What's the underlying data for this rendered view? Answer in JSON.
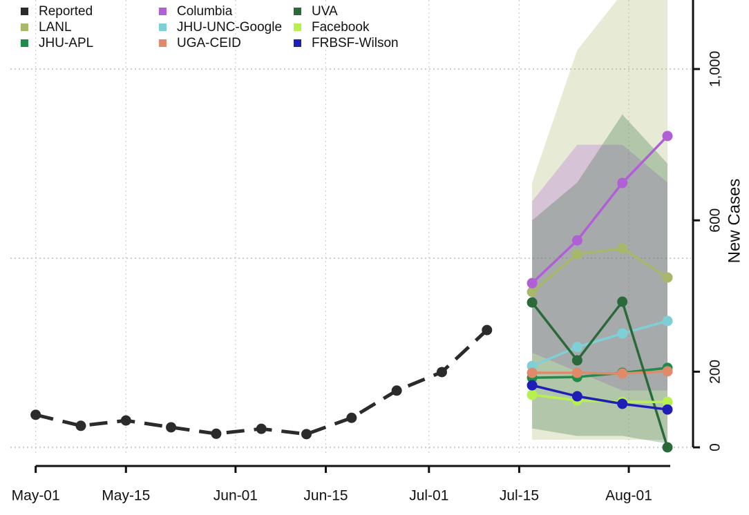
{
  "chart_data": {
    "type": "line",
    "y_label": "New Cases",
    "x": [
      "May-01",
      "May-08",
      "May-15",
      "May-22",
      "May-29",
      "Jun-05",
      "Jun-12",
      "Jun-19",
      "Jun-26",
      "Jul-03",
      "Jul-10",
      "Jul-17",
      "Jul-24",
      "Jul-31",
      "Aug-07"
    ],
    "series": [
      {
        "name": "Reported",
        "color": "#2b2b2b",
        "dashed": true,
        "values": [
          86,
          57,
          71,
          53,
          36,
          49,
          35,
          78,
          150,
          199,
          310,
          null,
          null,
          null,
          null
        ]
      },
      {
        "name": "LANL",
        "color": "#a8b86a",
        "values": [
          null,
          null,
          null,
          null,
          null,
          null,
          null,
          null,
          null,
          null,
          null,
          411,
          511,
          526,
          449
        ],
        "lower": [
          null,
          null,
          null,
          null,
          null,
          null,
          null,
          null,
          null,
          null,
          null,
          20,
          20,
          20,
          20
        ],
        "upper": [
          null,
          null,
          null,
          null,
          null,
          null,
          null,
          null,
          null,
          null,
          null,
          700,
          1050,
          1200,
          1300
        ]
      },
      {
        "name": "JHU-APL",
        "color": "#1f8c4a",
        "values": [
          null,
          null,
          null,
          null,
          null,
          null,
          null,
          null,
          null,
          null,
          null,
          184,
          186,
          197,
          210
        ]
      },
      {
        "name": "Columbia",
        "color": "#b05fd6",
        "values": [
          null,
          null,
          null,
          null,
          null,
          null,
          null,
          null,
          null,
          null,
          null,
          434,
          547,
          699,
          823
        ],
        "lower": [
          null,
          null,
          null,
          null,
          null,
          null,
          null,
          null,
          null,
          null,
          null,
          250,
          200,
          150,
          150
        ],
        "upper": [
          null,
          null,
          null,
          null,
          null,
          null,
          null,
          null,
          null,
          null,
          null,
          650,
          800,
          800,
          700
        ]
      },
      {
        "name": "JHU-UNC-Google",
        "color": "#7fd0d6",
        "values": [
          null,
          null,
          null,
          null,
          null,
          null,
          null,
          null,
          null,
          null,
          null,
          215,
          265,
          301,
          334
        ]
      },
      {
        "name": "UGA-CEID",
        "color": "#e08a6a",
        "values": [
          null,
          null,
          null,
          null,
          null,
          null,
          null,
          null,
          null,
          null,
          null,
          197,
          197,
          195,
          201
        ]
      },
      {
        "name": "UVA",
        "color": "#2a6a3a",
        "values": [
          null,
          null,
          null,
          null,
          null,
          null,
          null,
          null,
          null,
          null,
          null,
          383,
          230,
          385,
          0
        ],
        "lower": [
          null,
          null,
          null,
          null,
          null,
          null,
          null,
          null,
          null,
          null,
          null,
          50,
          30,
          30,
          10
        ],
        "upper": [
          null,
          null,
          null,
          null,
          null,
          null,
          null,
          null,
          null,
          null,
          null,
          600,
          700,
          880,
          750
        ]
      },
      {
        "name": "Facebook",
        "color": "#b8f050",
        "values": [
          null,
          null,
          null,
          null,
          null,
          null,
          null,
          null,
          null,
          null,
          null,
          139,
          124,
          120,
          120
        ]
      },
      {
        "name": "FRBSF-Wilson",
        "color": "#1f1fb8",
        "values": [
          null,
          null,
          null,
          null,
          null,
          null,
          null,
          null,
          null,
          null,
          null,
          164,
          135,
          115,
          100
        ]
      }
    ],
    "xlim": [
      "Apr-29",
      "Aug-10"
    ],
    "xticks": [
      "May-01",
      "May-15",
      "Jun-01",
      "Jun-15",
      "Jul-01",
      "Jul-15",
      "Aug-01"
    ],
    "ylim": [
      -50,
      1180
    ],
    "yticks": [
      0,
      200,
      600,
      {
        "value": 1000,
        "label": "1,000"
      }
    ],
    "ygrid": [
      0,
      500,
      1000
    ],
    "grid": true,
    "legend": "top-left"
  }
}
